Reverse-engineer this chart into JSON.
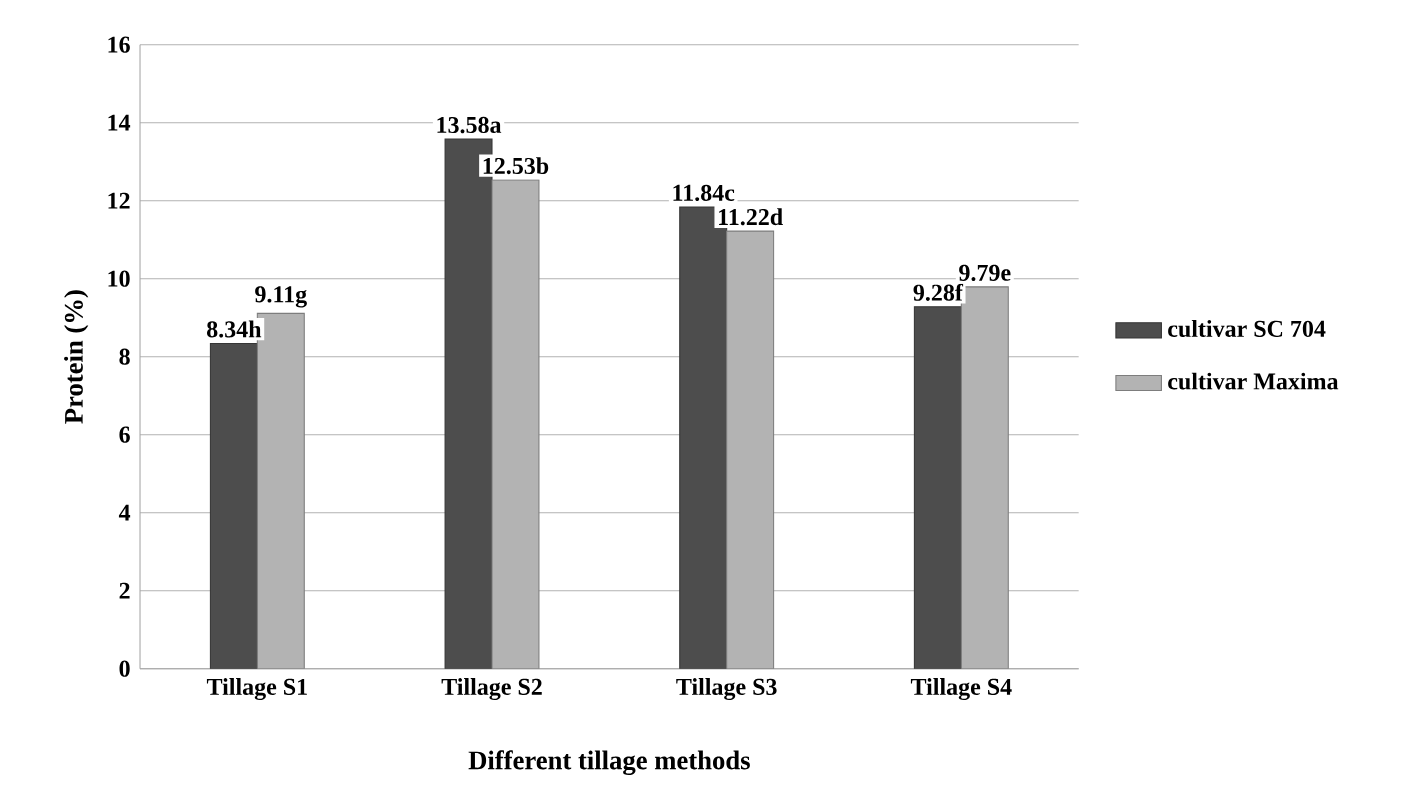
{
  "chart_data": {
    "type": "bar",
    "xlabel": "Different tillage methods",
    "ylabel": "Protein (%)",
    "categories": [
      "Tillage S1",
      "Tillage S2",
      "Tillage S3",
      "Tillage S4"
    ],
    "series": [
      {
        "name": "cultivar SC 704",
        "color": "#4d4d4d",
        "values": [
          8.34,
          13.58,
          11.84,
          9.28
        ],
        "value_labels": [
          "8.34h",
          "13.58a",
          "11.84c",
          "9.28f"
        ]
      },
      {
        "name": "cultivar Maxima",
        "color": "#b3b3b3",
        "values": [
          9.11,
          12.53,
          11.22,
          9.79
        ],
        "value_labels": [
          "9.11g",
          "12.53b",
          "11.22d",
          "9.79e"
        ]
      }
    ],
    "ylim": [
      0,
      16
    ],
    "yticks": [
      0,
      2,
      4,
      6,
      8,
      10,
      12,
      14,
      16
    ],
    "grid": "y",
    "legend": "right"
  }
}
